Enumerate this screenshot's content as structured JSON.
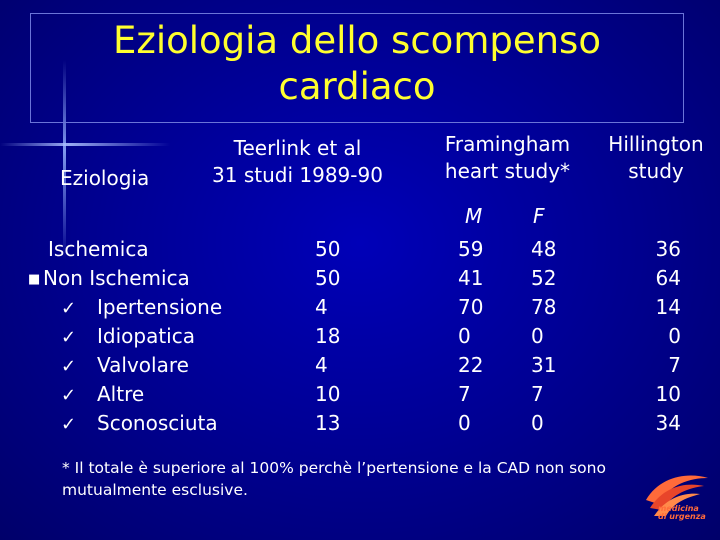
{
  "title": {
    "line1": "Eziologia dello scompenso",
    "line2": "cardiaco"
  },
  "headers": {
    "eziologia": "Eziologia",
    "teerlink_line1": "Teerlink et al",
    "teerlink_line2": "31 studi 1989-90",
    "framingham_line1": "Framingham",
    "framingham_line2": "heart study*",
    "hillington_line1": "Hillington",
    "hillington_line2": "study",
    "sub_m": "M",
    "sub_f": "F"
  },
  "rows": [
    {
      "label": "Ischemica",
      "marker": "",
      "teerlink": "50",
      "m": "59",
      "f": "48",
      "hillington": "36"
    },
    {
      "label": "Non Ischemica",
      "marker": "§",
      "teerlink": "50",
      "m": "41",
      "f": "52",
      "hillington": "64"
    },
    {
      "label": "Ipertensione",
      "marker": "ü",
      "teerlink": "4",
      "m": "70",
      "f": "78",
      "hillington": "14"
    },
    {
      "label": "Idiopatica",
      "marker": "ü",
      "teerlink": "18",
      "m": "0",
      "f": "0",
      "hillington": "0"
    },
    {
      "label": "Valvolare",
      "marker": "ü",
      "teerlink": "4",
      "m": "22",
      "f": "31",
      "hillington": "7"
    },
    {
      "label": "Altre",
      "marker": "ü",
      "teerlink": "10",
      "m": "7",
      "f": "7",
      "hillington": "10"
    },
    {
      "label": "Sconosciuta",
      "marker": "ü",
      "teerlink": "13",
      "m": "0",
      "f": "0",
      "hillington": "34"
    }
  ],
  "footnote": {
    "line1": "* Il totale è superiore al 100% perchè l’pertensione e la CAD non sono",
    "line2": "mutualmente esclusive."
  },
  "logo": {
    "text1": "medicina",
    "text2": "di urgenza"
  },
  "colors": {
    "background": "#000096",
    "title": "#ffff2e",
    "text": "#ffffff",
    "logo": "#ff6a3a"
  }
}
